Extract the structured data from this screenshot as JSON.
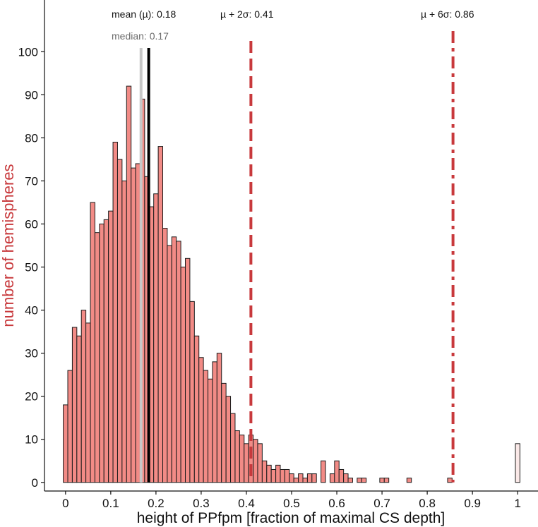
{
  "chart_data": {
    "type": "bar",
    "subtype": "histogram",
    "xlabel": "height of PPfpm [fraction of maximal CS depth]",
    "ylabel": "number of hemispheres",
    "xlim": [
      -0.045,
      1.045
    ],
    "ylim": [
      -2,
      112
    ],
    "x_ticks": [
      0,
      0.1,
      0.2,
      0.3,
      0.4,
      0.5,
      0.6,
      0.7,
      0.8,
      0.9,
      1
    ],
    "x_tick_labels": [
      "0",
      "0.1",
      "0.2",
      "0.3",
      "0.4",
      "0.5",
      "0.6",
      "0.7",
      "0.8",
      "0.9",
      "1"
    ],
    "y_ticks": [
      0,
      10,
      20,
      30,
      40,
      50,
      60,
      70,
      80,
      90,
      100
    ],
    "y_tick_labels": [
      "0",
      "10",
      "20",
      "30",
      "40",
      "50",
      "60",
      "70",
      "80",
      "90",
      "100"
    ],
    "bin_width": 0.01,
    "bin_starts": [
      -0.005,
      0.005,
      0.015,
      0.025,
      0.035,
      0.045,
      0.055,
      0.065,
      0.075,
      0.085,
      0.095,
      0.105,
      0.115,
      0.125,
      0.135,
      0.145,
      0.155,
      0.165,
      0.175,
      0.185,
      0.195,
      0.205,
      0.215,
      0.225,
      0.235,
      0.245,
      0.255,
      0.265,
      0.275,
      0.285,
      0.295,
      0.305,
      0.315,
      0.325,
      0.335,
      0.345,
      0.355,
      0.365,
      0.375,
      0.385,
      0.395,
      0.405,
      0.415,
      0.425,
      0.435,
      0.445,
      0.455,
      0.465,
      0.475,
      0.485,
      0.495,
      0.505,
      0.515,
      0.525,
      0.535,
      0.545,
      0.555,
      0.565,
      0.575,
      0.585,
      0.595,
      0.605,
      0.615,
      0.625,
      0.635,
      0.645,
      0.655,
      0.665,
      0.675,
      0.685,
      0.695,
      0.705,
      0.715,
      0.725,
      0.735,
      0.745,
      0.755,
      0.765,
      0.775,
      0.785,
      0.795,
      0.805,
      0.815,
      0.825,
      0.835,
      0.845,
      0.855,
      0.865,
      0.875,
      0.885,
      0.895,
      0.905,
      0.915,
      0.925,
      0.935,
      0.945,
      0.955,
      0.965,
      0.975,
      0.985,
      0.995
    ],
    "counts": [
      18,
      26,
      36,
      34,
      40,
      37,
      65,
      58,
      60,
      61,
      63,
      79,
      75,
      70,
      92,
      73,
      74,
      89,
      71,
      64,
      67,
      78,
      59,
      55,
      57,
      56,
      50,
      52,
      42,
      34,
      29,
      26,
      24,
      28,
      30,
      23,
      20,
      16,
      12,
      11,
      9,
      11,
      10,
      9,
      5,
      4,
      3,
      4,
      3,
      3,
      2,
      1,
      2,
      1,
      2,
      2,
      0,
      5,
      0,
      2,
      5,
      3,
      2,
      1,
      0,
      1,
      1,
      0,
      0,
      0,
      1,
      1,
      0,
      0,
      0,
      0,
      1,
      0,
      0,
      0,
      0,
      0,
      0,
      0,
      0,
      1,
      0,
      0,
      0,
      0,
      0,
      0,
      0,
      0,
      0,
      0,
      0,
      0,
      0,
      0,
      9
    ],
    "bar_fill": "#f28b86",
    "last_bar_fill": "#fbe9e8",
    "bar_stroke": "#1a1a1a",
    "reference_lines": [
      {
        "name": "mean",
        "x": 0.184,
        "label": "mean (µ): 0.18",
        "color": "#000000",
        "style": "solid"
      },
      {
        "name": "median",
        "x": 0.167,
        "label": "median: 0.17",
        "color": "#c8c8c8",
        "style": "solid"
      },
      {
        "name": "mu-plus-2-sigma",
        "x": 0.41,
        "label": "µ + 2σ: 0.41",
        "color": "#c8393c",
        "style": "dashed"
      },
      {
        "name": "mu-plus-6-sigma",
        "x": 0.857,
        "label": "µ + 6σ: 0.86",
        "color": "#c8393c",
        "style": "dashdot"
      }
    ]
  }
}
